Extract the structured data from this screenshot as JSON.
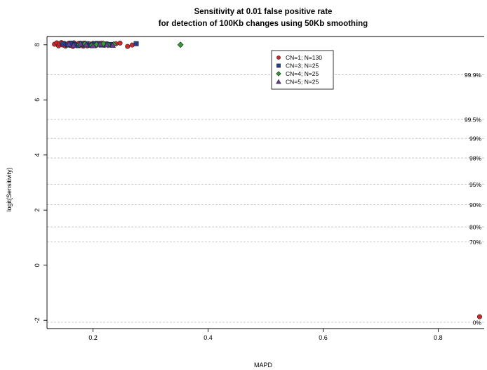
{
  "chart_data": {
    "type": "scatter",
    "title": "Sensitivity at 0.01 false positive rate",
    "subtitle": "for detection of 100Kb changes using 50Kb smoothing",
    "xlabel": "MAPD",
    "ylabel": "logit(Sensitivity)",
    "xlim": [
      0.12,
      0.88
    ],
    "ylim": [
      -2.3,
      8.3
    ],
    "x_ticks": [
      "0.2",
      "0.4",
      "0.6",
      "0.8"
    ],
    "y_ticks": [
      "-2",
      "0",
      "2",
      "4",
      "6",
      "8"
    ],
    "reference_lines": [
      {
        "label": "99.9%",
        "y": 6.91
      },
      {
        "label": "99.5%",
        "y": 5.29
      },
      {
        "label": "99%",
        "y": 4.6
      },
      {
        "label": "98%",
        "y": 3.89
      },
      {
        "label": "95%",
        "y": 2.94
      },
      {
        "label": "90%",
        "y": 2.2
      },
      {
        "label": "80%",
        "y": 1.39
      },
      {
        "label": "70%",
        "y": 0.85
      },
      {
        "label": "0%",
        "y": -2.07
      }
    ],
    "legend": {
      "position": "top-center",
      "entries": [
        "CN=1; N=130",
        "CN=3; N=25",
        "CN=4; N=25",
        "CN=5; N=25"
      ]
    },
    "series": [
      {
        "name": "CN=1; N=130",
        "marker": "circle",
        "color": "#d62728",
        "points": [
          [
            0.133,
            8.02
          ],
          [
            0.137,
            8.07
          ],
          [
            0.14,
            7.96
          ],
          [
            0.142,
            8.04
          ],
          [
            0.145,
            8.08
          ],
          [
            0.147,
            7.99
          ],
          [
            0.15,
            8.05
          ],
          [
            0.152,
            7.95
          ],
          [
            0.155,
            8.03
          ],
          [
            0.158,
            8.06
          ],
          [
            0.16,
            7.98
          ],
          [
            0.162,
            8.04
          ],
          [
            0.165,
            7.94
          ],
          [
            0.167,
            8.07
          ],
          [
            0.17,
            8.01
          ],
          [
            0.172,
            7.97
          ],
          [
            0.175,
            8.05
          ],
          [
            0.178,
            7.99
          ],
          [
            0.18,
            8.03
          ],
          [
            0.183,
            7.95
          ],
          [
            0.185,
            8.06
          ],
          [
            0.188,
            8.0
          ],
          [
            0.19,
            7.96
          ],
          [
            0.193,
            8.04
          ],
          [
            0.196,
            7.99
          ],
          [
            0.2,
            8.05
          ],
          [
            0.205,
            7.97
          ],
          [
            0.21,
            8.02
          ],
          [
            0.215,
            8.06
          ],
          [
            0.22,
            7.98
          ],
          [
            0.225,
            8.03
          ],
          [
            0.232,
            8.0
          ],
          [
            0.24,
            8.04
          ],
          [
            0.247,
            8.06
          ],
          [
            0.26,
            7.94
          ],
          [
            0.268,
            7.99
          ],
          [
            0.872,
            -1.87
          ]
        ]
      },
      {
        "name": "CN=3; N=25",
        "marker": "square",
        "color": "#1f3f99",
        "points": [
          [
            0.148,
            8.03
          ],
          [
            0.156,
            7.99
          ],
          [
            0.163,
            8.06
          ],
          [
            0.168,
            8.01
          ],
          [
            0.174,
            7.97
          ],
          [
            0.179,
            8.05
          ],
          [
            0.184,
            8.0
          ],
          [
            0.189,
            8.04
          ],
          [
            0.195,
            7.98
          ],
          [
            0.2,
            8.02
          ],
          [
            0.207,
            8.05
          ],
          [
            0.214,
            7.99
          ],
          [
            0.222,
            8.03
          ],
          [
            0.23,
            8.01
          ],
          [
            0.275,
            8.04
          ]
        ]
      },
      {
        "name": "CN=4; N=25",
        "marker": "diamond",
        "color": "#2ca02c",
        "points": [
          [
            0.176,
            8.0
          ],
          [
            0.186,
            8.03
          ],
          [
            0.198,
            7.98
          ],
          [
            0.206,
            8.01
          ],
          [
            0.218,
            8.04
          ],
          [
            0.226,
            7.99
          ],
          [
            0.236,
            8.02
          ],
          [
            0.352,
            8.0
          ]
        ]
      },
      {
        "name": "CN=5; N=25",
        "marker": "triangle",
        "color": "#6a3d9a",
        "points": [
          [
            0.158,
            8.02
          ],
          [
            0.166,
            7.98
          ],
          [
            0.178,
            8.04
          ],
          [
            0.188,
            8.0
          ],
          [
            0.2,
            7.97
          ],
          [
            0.212,
            8.03
          ],
          [
            0.224,
            8.0
          ],
          [
            0.234,
            7.98
          ]
        ]
      }
    ]
  }
}
